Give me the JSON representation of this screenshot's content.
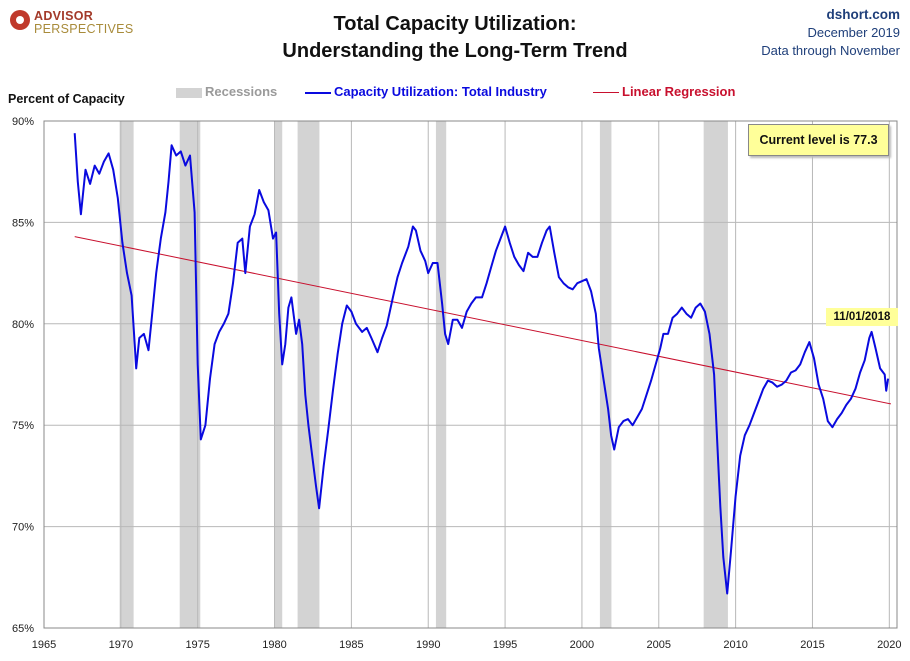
{
  "header": {
    "logo_line1": "ADVISOR",
    "logo_line2": "PERSPECTIVES",
    "title_line1": "Total Capacity Utilization:",
    "title_line2": "Understanding  the Long-Term Trend",
    "source": "dshort.com",
    "date": "December 2019",
    "data_through": "Data through November"
  },
  "annotations": {
    "current_level": "Current level is 77.3",
    "marker_date": "11/01/2018"
  },
  "colors": {
    "series": "#0a0adf",
    "regression": "#c8102e",
    "recession": "#d3d3d3",
    "grid": "#b8b8b8",
    "annotation_bg": "#ffff99"
  },
  "chart_data": {
    "type": "line",
    "ylabel": "Percent of Capacity",
    "xlabel": "",
    "xlim": [
      1965,
      2020.5
    ],
    "ylim": [
      65,
      90
    ],
    "x_ticks": [
      "1965",
      "1970",
      "1975",
      "1980",
      "1985",
      "1990",
      "1995",
      "2000",
      "2005",
      "2010",
      "2015",
      "2020"
    ],
    "y_ticks": [
      "65%",
      "70%",
      "75%",
      "80%",
      "85%",
      "90%"
    ],
    "grid": true,
    "legend_position": "top",
    "legend": [
      "Recessions",
      "Capacity Utilization: Total Industry",
      "Linear Regression"
    ],
    "recessions": [
      [
        1969.92,
        1970.83
      ],
      [
        1973.83,
        1975.17
      ],
      [
        1980.0,
        1980.5
      ],
      [
        1981.5,
        1982.92
      ],
      [
        1990.5,
        1991.17
      ],
      [
        2001.17,
        2001.92
      ],
      [
        2007.92,
        2009.5
      ]
    ],
    "series": [
      {
        "name": "Capacity Utilization: Total Industry",
        "points": [
          [
            1967.0,
            89.4
          ],
          [
            1967.2,
            87.0
          ],
          [
            1967.4,
            85.4
          ],
          [
            1967.7,
            87.6
          ],
          [
            1968.0,
            86.9
          ],
          [
            1968.3,
            87.8
          ],
          [
            1968.6,
            87.4
          ],
          [
            1968.9,
            88.0
          ],
          [
            1969.2,
            88.4
          ],
          [
            1969.5,
            87.6
          ],
          [
            1969.8,
            86.2
          ],
          [
            1970.1,
            84.0
          ],
          [
            1970.4,
            82.5
          ],
          [
            1970.7,
            81.4
          ],
          [
            1970.9,
            79.0
          ],
          [
            1971.0,
            77.8
          ],
          [
            1971.2,
            79.3
          ],
          [
            1971.5,
            79.5
          ],
          [
            1971.8,
            78.7
          ],
          [
            1972.0,
            80.2
          ],
          [
            1972.3,
            82.5
          ],
          [
            1972.6,
            84.2
          ],
          [
            1972.9,
            85.5
          ],
          [
            1973.1,
            87.0
          ],
          [
            1973.3,
            88.8
          ],
          [
            1973.6,
            88.3
          ],
          [
            1973.9,
            88.5
          ],
          [
            1974.2,
            87.8
          ],
          [
            1974.5,
            88.3
          ],
          [
            1974.8,
            85.5
          ],
          [
            1975.0,
            78.0
          ],
          [
            1975.2,
            74.3
          ],
          [
            1975.5,
            75.0
          ],
          [
            1975.8,
            77.3
          ],
          [
            1976.1,
            79.0
          ],
          [
            1976.4,
            79.6
          ],
          [
            1976.7,
            80.0
          ],
          [
            1977.0,
            80.5
          ],
          [
            1977.3,
            82.0
          ],
          [
            1977.6,
            84.0
          ],
          [
            1977.9,
            84.2
          ],
          [
            1978.1,
            82.5
          ],
          [
            1978.4,
            84.8
          ],
          [
            1978.7,
            85.4
          ],
          [
            1979.0,
            86.6
          ],
          [
            1979.3,
            86.0
          ],
          [
            1979.6,
            85.6
          ],
          [
            1979.9,
            84.2
          ],
          [
            1980.1,
            84.5
          ],
          [
            1980.3,
            80.5
          ],
          [
            1980.5,
            78.0
          ],
          [
            1980.7,
            79.0
          ],
          [
            1980.9,
            80.8
          ],
          [
            1981.1,
            81.3
          ],
          [
            1981.4,
            79.5
          ],
          [
            1981.6,
            80.2
          ],
          [
            1981.8,
            79.0
          ],
          [
            1982.0,
            76.5
          ],
          [
            1982.2,
            75.0
          ],
          [
            1982.4,
            73.8
          ],
          [
            1982.7,
            72.0
          ],
          [
            1982.9,
            70.9
          ],
          [
            1983.2,
            73.0
          ],
          [
            1983.5,
            74.8
          ],
          [
            1983.8,
            76.7
          ],
          [
            1984.1,
            78.5
          ],
          [
            1984.4,
            80.0
          ],
          [
            1984.7,
            80.9
          ],
          [
            1985.0,
            80.6
          ],
          [
            1985.3,
            80.0
          ],
          [
            1985.7,
            79.6
          ],
          [
            1986.0,
            79.8
          ],
          [
            1986.3,
            79.3
          ],
          [
            1986.7,
            78.6
          ],
          [
            1987.0,
            79.3
          ],
          [
            1987.3,
            79.9
          ],
          [
            1987.7,
            81.3
          ],
          [
            1988.0,
            82.3
          ],
          [
            1988.3,
            83.0
          ],
          [
            1988.7,
            83.8
          ],
          [
            1989.0,
            84.8
          ],
          [
            1989.2,
            84.6
          ],
          [
            1989.5,
            83.6
          ],
          [
            1989.8,
            83.1
          ],
          [
            1990.0,
            82.5
          ],
          [
            1990.3,
            83.0
          ],
          [
            1990.6,
            83.0
          ],
          [
            1990.9,
            81.0
          ],
          [
            1991.1,
            79.5
          ],
          [
            1991.3,
            79.0
          ],
          [
            1991.6,
            80.2
          ],
          [
            1991.9,
            80.2
          ],
          [
            1992.2,
            79.8
          ],
          [
            1992.5,
            80.6
          ],
          [
            1992.8,
            81.0
          ],
          [
            1993.1,
            81.3
          ],
          [
            1993.5,
            81.3
          ],
          [
            1993.8,
            82.0
          ],
          [
            1994.1,
            82.8
          ],
          [
            1994.4,
            83.6
          ],
          [
            1994.7,
            84.2
          ],
          [
            1995.0,
            84.8
          ],
          [
            1995.3,
            84.0
          ],
          [
            1995.6,
            83.3
          ],
          [
            1995.9,
            82.9
          ],
          [
            1996.2,
            82.6
          ],
          [
            1996.5,
            83.5
          ],
          [
            1996.8,
            83.3
          ],
          [
            1997.1,
            83.3
          ],
          [
            1997.4,
            84.0
          ],
          [
            1997.7,
            84.6
          ],
          [
            1997.9,
            84.8
          ],
          [
            1998.2,
            83.5
          ],
          [
            1998.5,
            82.3
          ],
          [
            1998.8,
            82.0
          ],
          [
            1999.1,
            81.8
          ],
          [
            1999.4,
            81.7
          ],
          [
            1999.7,
            82.0
          ],
          [
            2000.0,
            82.1
          ],
          [
            2000.3,
            82.2
          ],
          [
            2000.6,
            81.6
          ],
          [
            2000.9,
            80.5
          ],
          [
            2001.1,
            78.8
          ],
          [
            2001.4,
            77.3
          ],
          [
            2001.7,
            75.8
          ],
          [
            2001.9,
            74.5
          ],
          [
            2002.1,
            73.8
          ],
          [
            2002.4,
            74.9
          ],
          [
            2002.7,
            75.2
          ],
          [
            2003.0,
            75.3
          ],
          [
            2003.3,
            75.0
          ],
          [
            2003.6,
            75.4
          ],
          [
            2003.9,
            75.8
          ],
          [
            2004.2,
            76.5
          ],
          [
            2004.5,
            77.2
          ],
          [
            2004.8,
            78.0
          ],
          [
            2005.1,
            78.8
          ],
          [
            2005.3,
            79.5
          ],
          [
            2005.6,
            79.5
          ],
          [
            2005.9,
            80.3
          ],
          [
            2006.2,
            80.5
          ],
          [
            2006.5,
            80.8
          ],
          [
            2006.8,
            80.5
          ],
          [
            2007.1,
            80.3
          ],
          [
            2007.4,
            80.8
          ],
          [
            2007.7,
            81.0
          ],
          [
            2008.0,
            80.6
          ],
          [
            2008.3,
            79.5
          ],
          [
            2008.6,
            77.5
          ],
          [
            2008.8,
            74.2
          ],
          [
            2009.0,
            71.0
          ],
          [
            2009.2,
            68.5
          ],
          [
            2009.45,
            66.7
          ],
          [
            2009.7,
            68.8
          ],
          [
            2010.0,
            71.5
          ],
          [
            2010.3,
            73.5
          ],
          [
            2010.6,
            74.5
          ],
          [
            2010.9,
            75.0
          ],
          [
            2011.2,
            75.6
          ],
          [
            2011.5,
            76.2
          ],
          [
            2011.8,
            76.8
          ],
          [
            2012.1,
            77.2
          ],
          [
            2012.4,
            77.1
          ],
          [
            2012.7,
            76.9
          ],
          [
            2013.0,
            77.0
          ],
          [
            2013.3,
            77.2
          ],
          [
            2013.6,
            77.6
          ],
          [
            2013.9,
            77.7
          ],
          [
            2014.2,
            78.0
          ],
          [
            2014.5,
            78.6
          ],
          [
            2014.8,
            79.1
          ],
          [
            2015.1,
            78.3
          ],
          [
            2015.4,
            77.0
          ],
          [
            2015.7,
            76.3
          ],
          [
            2016.0,
            75.2
          ],
          [
            2016.3,
            74.9
          ],
          [
            2016.6,
            75.3
          ],
          [
            2016.9,
            75.6
          ],
          [
            2017.2,
            76.0
          ],
          [
            2017.5,
            76.3
          ],
          [
            2017.8,
            76.8
          ],
          [
            2018.1,
            77.6
          ],
          [
            2018.4,
            78.2
          ],
          [
            2018.7,
            79.3
          ],
          [
            2018.85,
            79.6
          ],
          [
            2019.1,
            78.8
          ],
          [
            2019.4,
            77.8
          ],
          [
            2019.7,
            77.5
          ],
          [
            2019.8,
            76.7
          ],
          [
            2019.92,
            77.3
          ]
        ]
      },
      {
        "name": "Linear Regression",
        "points": [
          [
            1967.0,
            84.3
          ],
          [
            2020.1,
            76.05
          ]
        ]
      }
    ]
  }
}
